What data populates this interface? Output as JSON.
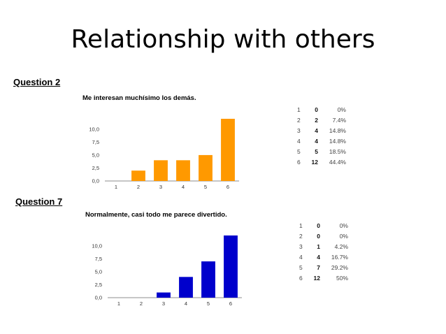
{
  "slide": {
    "title": "Relationship with others"
  },
  "questions": [
    {
      "label": "Question 2",
      "chart_title": "Me interesan muchísimo los demás.",
      "table": [
        {
          "option": "1",
          "count": "0",
          "percent": "0%"
        },
        {
          "option": "2",
          "count": "2",
          "percent": "7.4%"
        },
        {
          "option": "3",
          "count": "4",
          "percent": "14.8%"
        },
        {
          "option": "4",
          "count": "4",
          "percent": "14.8%"
        },
        {
          "option": "5",
          "count": "5",
          "percent": "18.5%"
        },
        {
          "option": "6",
          "count": "12",
          "percent": "44.4%"
        }
      ]
    },
    {
      "label": "Question 7",
      "chart_title": "Normalmente, casi todo me parece divertido.",
      "table": [
        {
          "option": "1",
          "count": "0",
          "percent": "0%"
        },
        {
          "option": "2",
          "count": "0",
          "percent": "0%"
        },
        {
          "option": "3",
          "count": "1",
          "percent": "4.2%"
        },
        {
          "option": "4",
          "count": "4",
          "percent": "16.7%"
        },
        {
          "option": "5",
          "count": "7",
          "percent": "29.2%"
        },
        {
          "option": "6",
          "count": "12",
          "percent": "50%"
        }
      ]
    }
  ],
  "chart_data": [
    {
      "type": "bar",
      "title": "Me interesan muchísimo los demás.",
      "categories": [
        "1",
        "2",
        "3",
        "4",
        "5",
        "6"
      ],
      "values": [
        0,
        2,
        4,
        4,
        5,
        12
      ],
      "y_ticks": [
        "0,0",
        "2,5",
        "5,0",
        "7,5",
        "10,0"
      ],
      "ylim": [
        0,
        12
      ],
      "color": "#FF9900",
      "grid": false
    },
    {
      "type": "bar",
      "title": "Normalmente, casi todo me parece divertido.",
      "categories": [
        "1",
        "2",
        "3",
        "4",
        "5",
        "6"
      ],
      "values": [
        0,
        0,
        1,
        4,
        7,
        12
      ],
      "y_ticks": [
        "0,0",
        "2,5",
        "5,0",
        "7,5",
        "10,0"
      ],
      "ylim": [
        0,
        12
      ],
      "color": "#0000CC",
      "grid": false
    }
  ]
}
